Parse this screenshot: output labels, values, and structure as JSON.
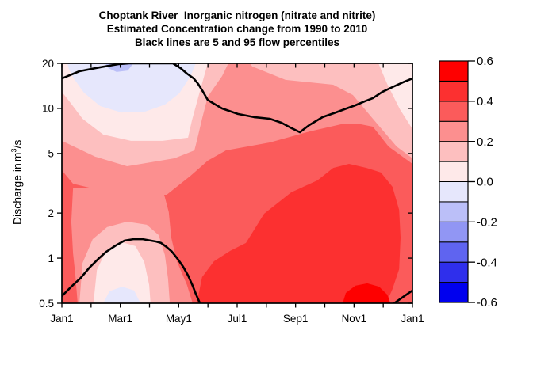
{
  "chart_data": {
    "type": "heatmap",
    "variant": "filled_contour",
    "title_lines": [
      "Choptank River  Inorganic nitrogen (nitrate and nitrite)",
      "Estimated Concentration change from 1990 to 2010",
      "Black lines are 5 and 95 flow percentiles"
    ],
    "x_axis": {
      "tick_labels": [
        "Jan1",
        "Mar1",
        "May1",
        "Jul1",
        "Sep1",
        "Nov1",
        "Jan1"
      ],
      "months_span": 12,
      "minor_tick_count": 13,
      "labels_every_months": 2
    },
    "y_axis": {
      "label_prefix": "Discharge in",
      "unit_base": "m",
      "unit_exponent": "3",
      "unit_suffix": "/s",
      "scale": "log",
      "range": [
        0.5,
        20
      ],
      "tick_values": [
        20,
        10,
        5,
        2,
        1,
        0.5
      ],
      "tick_labels": [
        "20",
        "10",
        "5",
        "2",
        "1",
        "0.5"
      ]
    },
    "colorbar": {
      "min": -0.6,
      "max": 0.6,
      "step": 0.1,
      "colors_bottom_to_top": [
        "#0000EE",
        "#2F2FEC",
        "#5F64F0",
        "#9196F4",
        "#BBBFF8",
        "#E6E7FC",
        "#FEE9E9",
        "#FDBFBF",
        "#FC8F8F",
        "#FB5B5B",
        "#FC3030",
        "#FE0000"
      ],
      "tick_values_top_to_bottom": [
        0.6,
        0.4,
        0.2,
        0.0,
        -0.2,
        -0.4,
        -0.6
      ],
      "tick_labels_top_to_bottom": [
        "0.6",
        "0.4",
        "0.2",
        "0.0",
        "-0.2",
        "-0.4",
        "-0.6"
      ]
    },
    "coords_note": "band and line points are [x,y] fractions of the plot box; x spans Jan1 to Jan1 (12 months), y spans discharge 20 (top) to 0.5 (bottom) on log scale",
    "line_color": "#000000",
    "bands": [
      {
        "name": "base-0.2-0.3",
        "value_range": [
          0.2,
          0.3
        ],
        "color": "#FC8F8F",
        "points": [
          [
            0,
            0
          ],
          [
            1,
            0
          ],
          [
            1,
            1
          ],
          [
            0,
            1
          ]
        ]
      },
      {
        "name": "topleft-0.1-0.2",
        "value_range": [
          0.1,
          0.2
        ],
        "color": "#FDBFBF",
        "points": [
          [
            0,
            0
          ],
          [
            0.475,
            0
          ],
          [
            0.457,
            0.053
          ],
          [
            0.416,
            0.139
          ],
          [
            0.4,
            0.231
          ],
          [
            0.385,
            0.323
          ],
          [
            0.378,
            0.363
          ],
          [
            0.321,
            0.396
          ],
          [
            0.186,
            0.429
          ],
          [
            0.095,
            0.389
          ],
          [
            0,
            0.323
          ]
        ]
      },
      {
        "name": "topright-0.1-0.2",
        "value_range": [
          0.1,
          0.2
        ],
        "color": "#FDBFBF",
        "points": [
          [
            0.536,
            0
          ],
          [
            1,
            0
          ],
          [
            1,
            0.396
          ],
          [
            0.955,
            0.347
          ],
          [
            0.887,
            0.231
          ],
          [
            0.83,
            0.132
          ],
          [
            0.774,
            0.089
          ],
          [
            0.638,
            0.069
          ],
          [
            0.543,
            0.013
          ]
        ]
      },
      {
        "name": "topleft-0.0-0.1",
        "value_range": [
          0.0,
          0.1
        ],
        "color": "#FEE9E9",
        "points": [
          [
            0,
            0
          ],
          [
            0.416,
            0
          ],
          [
            0.394,
            0.116
          ],
          [
            0.371,
            0.238
          ],
          [
            0.36,
            0.31
          ],
          [
            0.287,
            0.323
          ],
          [
            0.197,
            0.323
          ],
          [
            0.118,
            0.297
          ],
          [
            0.059,
            0.231
          ],
          [
            0.018,
            0.152
          ],
          [
            0,
            0.119
          ]
        ]
      },
      {
        "name": "topleft-neg0.1-0.0",
        "value_range": [
          -0.1,
          0.0
        ],
        "color": "#E6E7FC",
        "points": [
          [
            0.016,
            0
          ],
          [
            0.382,
            0
          ],
          [
            0.367,
            0.053
          ],
          [
            0.335,
            0.125
          ],
          [
            0.294,
            0.172
          ],
          [
            0.238,
            0.201
          ],
          [
            0.17,
            0.205
          ],
          [
            0.109,
            0.178
          ],
          [
            0.063,
            0.122
          ],
          [
            0.034,
            0.063
          ],
          [
            0.02,
            0.023
          ]
        ]
      },
      {
        "name": "topleft-neg0.2-neg0.1",
        "value_range": [
          -0.2,
          -0.1
        ],
        "color": "#BBBFF8",
        "points": [
          [
            0.124,
            0
          ],
          [
            0.204,
            0
          ],
          [
            0.188,
            0.03
          ],
          [
            0.156,
            0.036
          ],
          [
            0.133,
            0.02
          ]
        ]
      },
      {
        "name": "topright-0.0-0.1",
        "value_range": [
          0.0,
          0.1
        ],
        "color": "#FEE9E9",
        "points": [
          [
            0.903,
            0
          ],
          [
            1,
            0
          ],
          [
            1,
            0.274
          ],
          [
            0.964,
            0.191
          ],
          [
            0.928,
            0.086
          ]
        ]
      },
      {
        "name": "lower-0.3-0.4",
        "value_range": [
          0.3,
          0.4
        ],
        "color": "#FB5B5B",
        "points": [
          [
            0,
            0.446
          ],
          [
            0.032,
            0.502
          ],
          [
            0.163,
            0.548
          ],
          [
            0.299,
            0.548
          ],
          [
            0.367,
            0.469
          ],
          [
            0.416,
            0.406
          ],
          [
            0.468,
            0.363
          ],
          [
            0.593,
            0.33
          ],
          [
            0.706,
            0.284
          ],
          [
            0.796,
            0.254
          ],
          [
            0.853,
            0.254
          ],
          [
            0.887,
            0.264
          ],
          [
            0.932,
            0.347
          ],
          [
            1,
            0.419
          ],
          [
            1,
            1
          ],
          [
            0,
            1
          ]
        ]
      },
      {
        "name": "hump-0.2-0.3",
        "value_range": [
          0.2,
          0.3
        ],
        "color": "#FC8F8F",
        "points": [
          [
            0.032,
            0.521
          ],
          [
            0.287,
            0.521
          ],
          [
            0.305,
            0.62
          ],
          [
            0.312,
            0.726
          ],
          [
            0.328,
            0.825
          ],
          [
            0.357,
            0.924
          ],
          [
            0.373,
            1
          ],
          [
            0.045,
            1
          ],
          [
            0.038,
            0.875
          ],
          [
            0.032,
            0.792
          ],
          [
            0.027,
            0.66
          ]
        ]
      },
      {
        "name": "valley-0.1-0.2",
        "value_range": [
          0.1,
          0.2
        ],
        "color": "#FDBFBF",
        "points": [
          [
            0.05,
            1
          ],
          [
            0.059,
            0.832
          ],
          [
            0.088,
            0.733
          ],
          [
            0.129,
            0.683
          ],
          [
            0.186,
            0.66
          ],
          [
            0.242,
            0.673
          ],
          [
            0.276,
            0.716
          ],
          [
            0.294,
            0.799
          ],
          [
            0.303,
            0.898
          ],
          [
            0.308,
            1
          ]
        ]
      },
      {
        "name": "valley-0.0-0.1",
        "value_range": [
          0.0,
          0.1
        ],
        "color": "#FEE9E9",
        "points": [
          [
            0.09,
            1
          ],
          [
            0.1,
            0.861
          ],
          [
            0.127,
            0.779
          ],
          [
            0.172,
            0.746
          ],
          [
            0.21,
            0.762
          ],
          [
            0.235,
            0.828
          ],
          [
            0.249,
            0.924
          ],
          [
            0.253,
            1
          ]
        ]
      },
      {
        "name": "valley-neg0.1-0.0",
        "value_range": [
          -0.1,
          0.0
        ],
        "color": "#E6E7FC",
        "points": [
          [
            0.118,
            1
          ],
          [
            0.136,
            0.95
          ],
          [
            0.172,
            0.931
          ],
          [
            0.206,
            0.947
          ],
          [
            0.224,
            1
          ]
        ]
      },
      {
        "name": "bottomright-0.4-0.5",
        "value_range": [
          0.4,
          0.5
        ],
        "color": "#FC3030",
        "points": [
          [
            0.385,
            1
          ],
          [
            0.4,
            0.891
          ],
          [
            0.434,
            0.825
          ],
          [
            0.48,
            0.782
          ],
          [
            0.525,
            0.749
          ],
          [
            0.577,
            0.627
          ],
          [
            0.654,
            0.538
          ],
          [
            0.729,
            0.488
          ],
          [
            0.774,
            0.436
          ],
          [
            0.819,
            0.419
          ],
          [
            0.869,
            0.436
          ],
          [
            0.91,
            0.455
          ],
          [
            0.943,
            0.515
          ],
          [
            0.962,
            0.611
          ],
          [
            0.966,
            0.726
          ],
          [
            0.962,
            0.858
          ],
          [
            0.943,
            0.941
          ],
          [
            0.925,
            1
          ]
        ]
      },
      {
        "name": "bottomright-0.5-0.6",
        "value_range": [
          0.5,
          0.6
        ],
        "color": "#FE0000",
        "points": [
          [
            0.801,
            1
          ],
          [
            0.81,
            0.957
          ],
          [
            0.837,
            0.927
          ],
          [
            0.871,
            0.917
          ],
          [
            0.905,
            0.931
          ],
          [
            0.928,
            0.964
          ],
          [
            0.937,
            1
          ]
        ]
      }
    ],
    "percentile_lines": [
      {
        "name": "p95-flow-percentile",
        "points": [
          [
            0,
            0.063
          ],
          [
            0.05,
            0.033
          ],
          [
            0.106,
            0.017
          ],
          [
            0.163,
            0.003
          ],
          [
            0.192,
            0.0
          ],
          [
            0.317,
            0.0
          ],
          [
            0.339,
            0.02
          ],
          [
            0.357,
            0.043
          ],
          [
            0.376,
            0.063
          ],
          [
            0.389,
            0.086
          ],
          [
            0.403,
            0.119
          ],
          [
            0.416,
            0.152
          ],
          [
            0.43,
            0.165
          ],
          [
            0.457,
            0.188
          ],
          [
            0.502,
            0.211
          ],
          [
            0.548,
            0.224
          ],
          [
            0.593,
            0.231
          ],
          [
            0.627,
            0.248
          ],
          [
            0.656,
            0.271
          ],
          [
            0.679,
            0.287
          ],
          [
            0.706,
            0.257
          ],
          [
            0.744,
            0.224
          ],
          [
            0.781,
            0.205
          ],
          [
            0.812,
            0.188
          ],
          [
            0.837,
            0.175
          ],
          [
            0.864,
            0.158
          ],
          [
            0.887,
            0.145
          ],
          [
            0.914,
            0.119
          ],
          [
            0.943,
            0.099
          ],
          [
            0.973,
            0.079
          ],
          [
            1,
            0.063
          ]
        ]
      },
      {
        "name": "p5-flow-percentile",
        "points": [
          [
            0,
            0.97
          ],
          [
            0.027,
            0.931
          ],
          [
            0.054,
            0.894
          ],
          [
            0.079,
            0.851
          ],
          [
            0.104,
            0.815
          ],
          [
            0.127,
            0.785
          ],
          [
            0.154,
            0.759
          ],
          [
            0.179,
            0.739
          ],
          [
            0.204,
            0.733
          ],
          [
            0.231,
            0.733
          ],
          [
            0.253,
            0.739
          ],
          [
            0.269,
            0.743
          ],
          [
            0.283,
            0.749
          ],
          [
            0.299,
            0.766
          ],
          [
            0.314,
            0.785
          ],
          [
            0.33,
            0.815
          ],
          [
            0.346,
            0.848
          ],
          [
            0.36,
            0.884
          ],
          [
            0.373,
            0.927
          ],
          [
            0.382,
            0.96
          ],
          [
            0.394,
            1
          ]
        ]
      },
      {
        "name": "p5-flow-percentile-tail",
        "points": [
          [
            0.948,
            1
          ],
          [
            0.977,
            0.97
          ],
          [
            1,
            0.947
          ]
        ]
      }
    ]
  }
}
